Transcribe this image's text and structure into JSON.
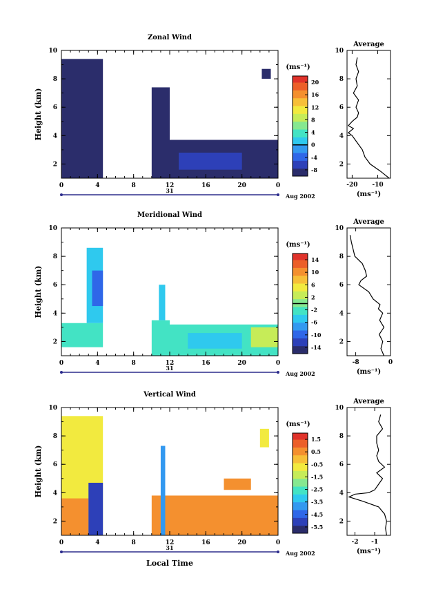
{
  "figure": {
    "x_axis_label": "Local Time",
    "date_label": "Aug 2002",
    "day_label": "31"
  },
  "colormap": [
    "#2b2d6b",
    "#2d40b8",
    "#2f67e8",
    "#3399f0",
    "#2fc9ee",
    "#43e3c4",
    "#86e890",
    "#c6ec58",
    "#f2ea3f",
    "#f7bf38",
    "#f4902f",
    "#ec5f29",
    "#e0322a"
  ],
  "chart_data": [
    {
      "type": "heatmap",
      "title": "Zonal Wind",
      "ylabel": "Height (km)",
      "unit_label": "(ms⁻¹)",
      "xlim": [
        0,
        24
      ],
      "ylim": [
        1,
        10
      ],
      "x_ticks": [
        "0",
        "4",
        "8",
        "12",
        "16",
        "20",
        "0"
      ],
      "y_ticks": [
        "2",
        "4",
        "6",
        "8",
        "10"
      ],
      "colorbar": {
        "ticks": [
          "-8",
          "-4",
          "0",
          "4",
          "8",
          "12",
          "16",
          "20"
        ],
        "range": [
          -10,
          22
        ],
        "contour_value": 0
      },
      "data_regions": [
        {
          "x": [
            0,
            4.6
          ],
          "y": [
            1,
            9.4
          ],
          "value": -9
        },
        {
          "x": [
            10,
            12
          ],
          "y": [
            1,
            7.4
          ],
          "value": -9
        },
        {
          "x": [
            12,
            24
          ],
          "y": [
            1,
            3.7
          ],
          "value": -8
        },
        {
          "x": [
            13,
            20
          ],
          "y": [
            1.6,
            2.8
          ],
          "value": -6
        },
        {
          "x": [
            22.2,
            23.2
          ],
          "y": [
            8.0,
            8.7
          ],
          "value": -9
        }
      ],
      "average_profile": {
        "title": "Average",
        "unit_label": "(ms⁻¹)",
        "xlim": [
          -22,
          -5
        ],
        "x_ticks": [
          "-20",
          "-10"
        ],
        "y_ticks": [
          "2",
          "4",
          "6",
          "8",
          "10"
        ],
        "height": [
          1.0,
          1.5,
          2.0,
          2.5,
          3.0,
          3.5,
          4.0,
          4.2,
          4.5,
          4.7,
          5.0,
          5.3,
          5.6,
          6.0,
          6.5,
          7.0,
          7.5,
          8.0,
          8.5,
          9.0,
          9.5
        ],
        "value": [
          -5.5,
          -9,
          -13,
          -15,
          -16,
          -18,
          -20,
          -21.5,
          -19.5,
          -21.5,
          -20,
          -18,
          -17.5,
          -18.5,
          -17.5,
          -19.5,
          -18,
          -18.5,
          -17.5,
          -18.5,
          -18
        ]
      }
    },
    {
      "type": "heatmap",
      "title": "Meridional Wind",
      "ylabel": "Height (km)",
      "unit_label": "(ms⁻¹)",
      "xlim": [
        0,
        24
      ],
      "ylim": [
        1,
        10
      ],
      "x_ticks": [
        "0",
        "4",
        "8",
        "12",
        "16",
        "20",
        "0"
      ],
      "y_ticks": [
        "2",
        "4",
        "6",
        "8",
        "10"
      ],
      "colorbar": {
        "ticks": [
          "-14",
          "-10",
          "-6",
          "-2",
          "2",
          "6",
          "10",
          "14"
        ],
        "range": [
          -16,
          16
        ],
        "contour_value": 0
      },
      "data_regions": [
        {
          "x": [
            0,
            4.6
          ],
          "y": [
            1.6,
            3.3
          ],
          "value": -3
        },
        {
          "x": [
            2.8,
            4.6
          ],
          "y": [
            3.3,
            8.6
          ],
          "value": -6
        },
        {
          "x": [
            3.4,
            4.6
          ],
          "y": [
            4.5,
            7.0
          ],
          "value": -9
        },
        {
          "x": [
            10,
            12
          ],
          "y": [
            1,
            3.5
          ],
          "value": -3
        },
        {
          "x": [
            10.8,
            11.5
          ],
          "y": [
            3.5,
            6.0
          ],
          "value": -5
        },
        {
          "x": [
            12,
            24
          ],
          "y": [
            1,
            3.2
          ],
          "value": -3
        },
        {
          "x": [
            14,
            20
          ],
          "y": [
            1.5,
            2.6
          ],
          "value": -6
        },
        {
          "x": [
            21,
            24
          ],
          "y": [
            1.6,
            3.0
          ],
          "value": 2
        }
      ],
      "average_profile": {
        "title": "Average",
        "unit_label": "(ms⁻¹)",
        "xlim": [
          -10,
          0
        ],
        "x_ticks": [
          "-8",
          "0"
        ],
        "y_ticks": [
          "2",
          "4",
          "6",
          "8",
          "10"
        ],
        "height": [
          1.0,
          1.5,
          2.0,
          2.5,
          3.0,
          3.5,
          4.0,
          4.3,
          4.6,
          5.0,
          5.5,
          6.0,
          6.3,
          6.6,
          7.0,
          7.5,
          8.0,
          8.5,
          9.0,
          9.5
        ],
        "value": [
          -1.5,
          -2.2,
          -1.8,
          -2.6,
          -1.5,
          -2.5,
          -1.8,
          -2.8,
          -2.4,
          -4.0,
          -5.0,
          -7.3,
          -6.8,
          -5.5,
          -5.8,
          -6.5,
          -8.2,
          -8.6,
          -9.0,
          -9.3
        ]
      }
    },
    {
      "type": "heatmap",
      "title": "Vertical Wind",
      "ylabel": "Height (km)",
      "unit_label": "(ms⁻¹)",
      "xlim": [
        0,
        24
      ],
      "ylim": [
        1,
        10
      ],
      "x_ticks": [
        "0",
        "4",
        "8",
        "12",
        "16",
        "20",
        "0"
      ],
      "y_ticks": [
        "2",
        "4",
        "6",
        "8",
        "10"
      ],
      "colorbar": {
        "ticks": [
          "-5.5",
          "-4.5",
          "-3.5",
          "-2.5",
          "-1.5",
          "-0.5",
          "0.5",
          "1.5"
        ],
        "range": [
          -6,
          2
        ]
      },
      "data_regions": [
        {
          "x": [
            0,
            4.6
          ],
          "y": [
            1,
            9.4
          ],
          "value": -0.8
        },
        {
          "x": [
            0,
            3.0
          ],
          "y": [
            1,
            3.6
          ],
          "value": 0.3
        },
        {
          "x": [
            3.0,
            4.6
          ],
          "y": [
            1,
            4.7
          ],
          "value": -5.0
        },
        {
          "x": [
            10,
            24
          ],
          "y": [
            1,
            3.8
          ],
          "value": 0.6
        },
        {
          "x": [
            11,
            11.5
          ],
          "y": [
            1,
            7.3
          ],
          "value": -4.0
        },
        {
          "x": [
            18,
            21
          ],
          "y": [
            4.2,
            5.0
          ],
          "value": 0.2
        },
        {
          "x": [
            22,
            23
          ],
          "y": [
            7.2,
            8.5
          ],
          "value": -1.0
        }
      ],
      "average_profile": {
        "title": "Average",
        "unit_label": "(ms⁻¹)",
        "xlim": [
          -2.4,
          -0.2
        ],
        "x_ticks": [
          "-2",
          "-1"
        ],
        "y_ticks": [
          "2",
          "4",
          "6",
          "8",
          "10"
        ],
        "height": [
          1.0,
          1.5,
          2.0,
          2.5,
          3.0,
          3.4,
          3.7,
          3.9,
          4.0,
          4.2,
          4.6,
          5.0,
          5.4,
          5.8,
          6.2,
          6.6,
          7.0,
          7.5,
          8.0,
          8.5,
          9.0,
          9.5
        ],
        "value": [
          -0.4,
          -0.45,
          -0.4,
          -0.5,
          -0.8,
          -1.6,
          -2.3,
          -2.0,
          -1.3,
          -1.0,
          -0.8,
          -0.6,
          -0.9,
          -0.5,
          -0.8,
          -0.9,
          -0.8,
          -0.9,
          -0.9,
          -0.6,
          -0.8,
          -0.7
        ]
      }
    }
  ]
}
